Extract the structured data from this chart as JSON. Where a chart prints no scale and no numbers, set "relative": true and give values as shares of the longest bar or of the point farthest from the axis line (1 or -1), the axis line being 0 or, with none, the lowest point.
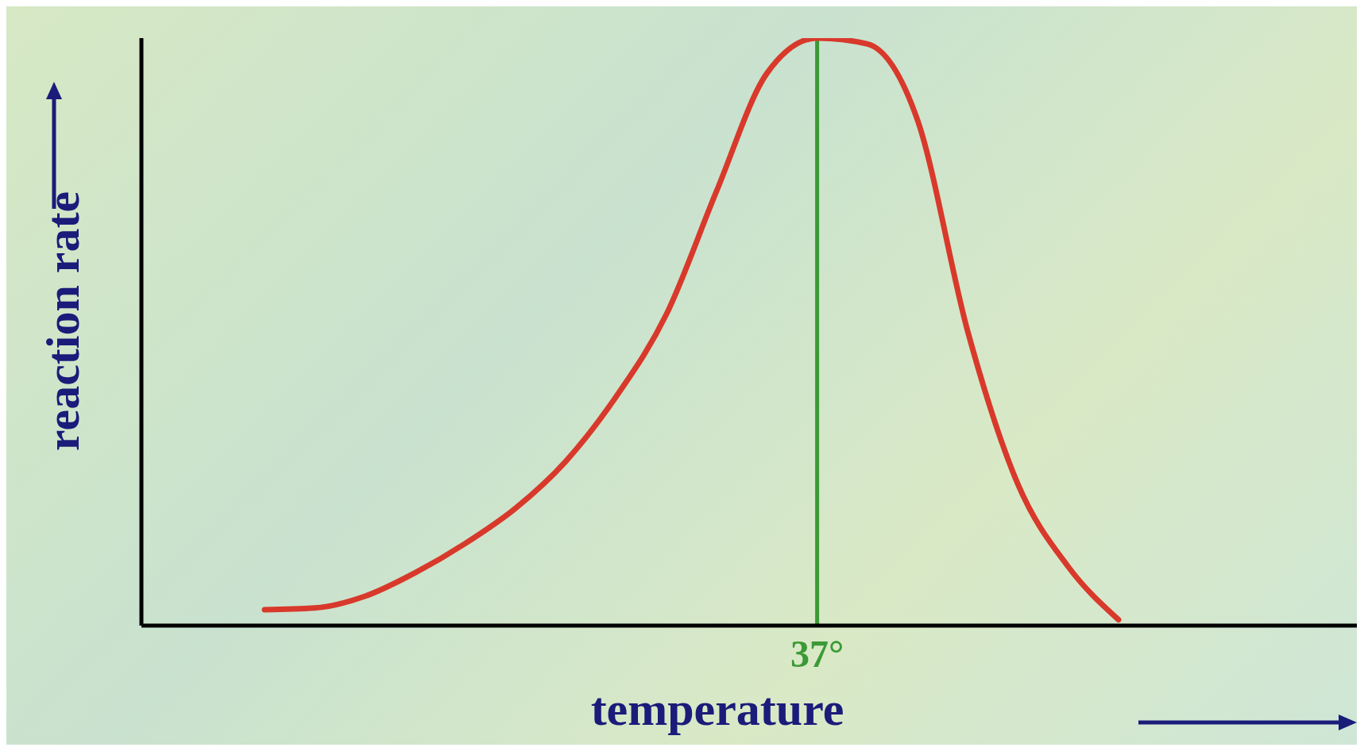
{
  "chart_data": {
    "type": "line",
    "xlabel": "temperature",
    "ylabel": "reaction rate",
    "relative": true,
    "categories": [
      null,
      null,
      null,
      null,
      null,
      null,
      null,
      null,
      null,
      null,
      null,
      null,
      null,
      null,
      null,
      null,
      null,
      null
    ],
    "series": [
      {
        "color": "#d8392b",
        "values": [
          0.027,
          0.03,
          0.05,
          0.09,
          0.14,
          0.2,
          0.28,
          0.39,
          0.53,
          0.74,
          0.94,
          1,
          0.99,
          0.86,
          0.5,
          0.24,
          0.1,
          0.01
        ]
      }
    ],
    "ref_lines": [
      {
        "axis": "x",
        "value": "37°",
        "color": "#3b9a35"
      }
    ],
    "grid": false,
    "legend": false,
    "marker": "none",
    "line_style": "solid"
  }
}
